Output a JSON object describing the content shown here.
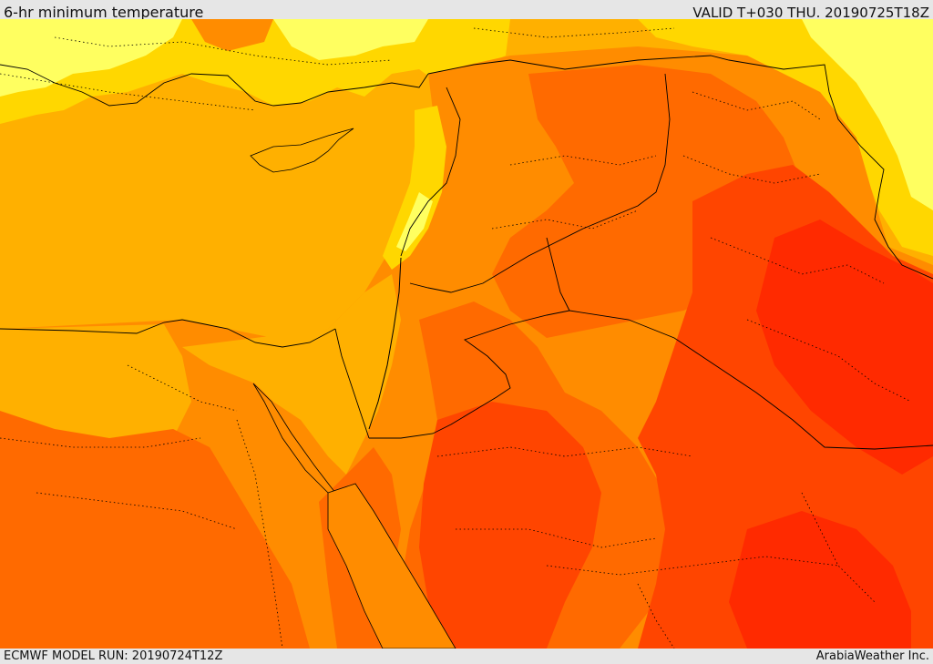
{
  "header": {
    "title": "6-hr minimum temperature",
    "valid": "VALID T+030 THU. 20190725T18Z"
  },
  "footer": {
    "model_run": "ECMWF MODEL RUN: 20190724T12Z",
    "credit": "ArabiaWeather Inc."
  },
  "colors": {
    "frame": "#e6e6e6",
    "pale_yellow": "#ffff60",
    "yellow": "#ffd700",
    "amber": "#ffb000",
    "orange": "#ff8c00",
    "dark_orange": "#ff6a00",
    "red_orange": "#ff4500",
    "red": "#ff2a00",
    "boundary": "#000000"
  }
}
